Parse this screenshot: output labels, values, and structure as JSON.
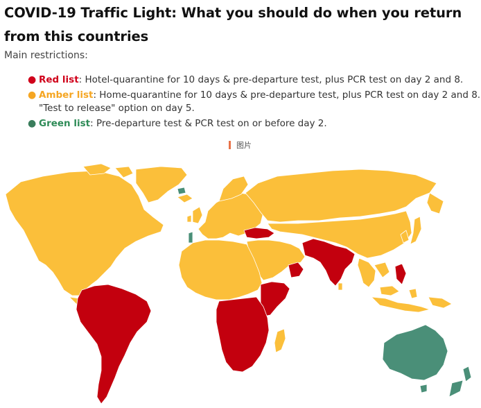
{
  "title": "COVID-19 Traffic Light: What you should do when you return from this countries",
  "subtitle": "Main restrictions:",
  "restrictions": [
    {
      "name": "Red list",
      "text": ": Hotel-quarantine for 10 days & pre-departure test, plus PCR test on day 2 and 8.",
      "color": "#d0021b"
    },
    {
      "name": "Amber list",
      "text": ": Home-quarantine for 10 days & pre-departure test, plus PCR test on day 2 and 8. \"Test to release\" option on day 5.",
      "color": "#f5a623"
    },
    {
      "name": "Green list",
      "text": ": Pre-departure test & PCR test on or before day 2.",
      "color": "#2e8b57"
    }
  ],
  "image_caption": "图片",
  "map": {
    "icon": "world-map-image",
    "colors": {
      "amber": "#fbbf3a",
      "red": "#c3000e",
      "green": "#4a8f78",
      "background": "#ffffff"
    }
  }
}
